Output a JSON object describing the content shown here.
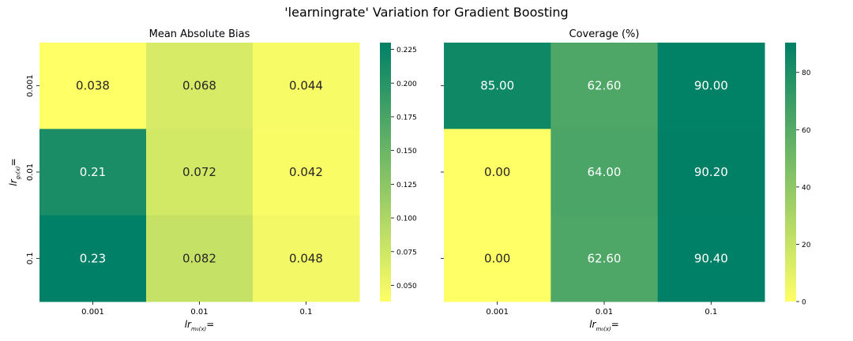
{
  "figure": {
    "title": "'learningrate' Variation for Gradient Boosting"
  },
  "chart_data": [
    {
      "type": "heatmap",
      "title": "Mean Absolute Bias",
      "x_categories": [
        "0.001",
        "0.01",
        "0.1"
      ],
      "y_categories": [
        "0.001",
        "0.01",
        "0.1"
      ],
      "xlabel": "lr_{m_0(x)}=",
      "ylabel": "lr_{g_0(x)}=",
      "values": [
        [
          0.038,
          0.068,
          0.044
        ],
        [
          0.21,
          0.072,
          0.042
        ],
        [
          0.23,
          0.082,
          0.048
        ]
      ],
      "annotations": [
        [
          "0.038",
          "0.068",
          "0.044"
        ],
        [
          "0.21",
          "0.072",
          "0.042"
        ],
        [
          "0.23",
          "0.082",
          "0.048"
        ]
      ],
      "vmin": 0.038,
      "vmax": 0.23,
      "colorbar_ticks": [
        0.05,
        0.075,
        0.1,
        0.125,
        0.15,
        0.175,
        0.2,
        0.225
      ],
      "colorbar_tick_labels": [
        "0.050",
        "0.075",
        "0.100",
        "0.125",
        "0.150",
        "0.175",
        "0.200",
        "0.225"
      ],
      "colormap": "summer_r"
    },
    {
      "type": "heatmap",
      "title": "Coverage (%)",
      "x_categories": [
        "0.001",
        "0.01",
        "0.1"
      ],
      "y_categories": [
        "0.001",
        "0.01",
        "0.1"
      ],
      "xlabel": "lr_{m_0(x)}=",
      "ylabel": "",
      "values": [
        [
          85.0,
          62.6,
          90.0
        ],
        [
          0.0,
          64.0,
          90.2
        ],
        [
          0.0,
          62.6,
          90.4
        ]
      ],
      "annotations": [
        [
          "85.00",
          "62.60",
          "90.00"
        ],
        [
          "0.00",
          "64.00",
          "90.20"
        ],
        [
          "0.00",
          "62.60",
          "90.40"
        ]
      ],
      "vmin": 0,
      "vmax": 90.4,
      "colorbar_ticks": [
        0,
        20,
        40,
        60,
        80
      ],
      "colorbar_tick_labels": [
        "0",
        "20",
        "40",
        "60",
        "80"
      ],
      "colormap": "summer_r"
    }
  ]
}
